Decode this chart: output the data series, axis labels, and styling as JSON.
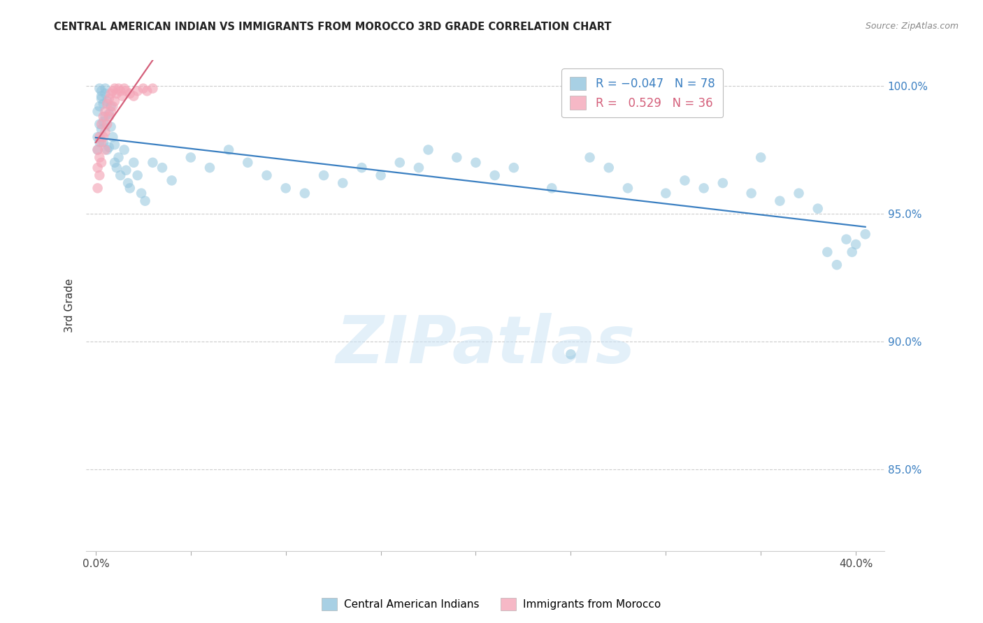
{
  "title": "CENTRAL AMERICAN INDIAN VS IMMIGRANTS FROM MOROCCO 3RD GRADE CORRELATION CHART",
  "source": "Source: ZipAtlas.com",
  "ylabel_label": "3rd Grade",
  "blue_color": "#92c5de",
  "pink_color": "#f4a6b8",
  "blue_line_color": "#3a7fc1",
  "pink_line_color": "#d45f7a",
  "watermark_text": "ZIPatlas",
  "xtick_positions": [
    0.0,
    0.05,
    0.1,
    0.15,
    0.2,
    0.25,
    0.3,
    0.35,
    0.4
  ],
  "xtick_labels": [
    "0.0%",
    "",
    "",
    "",
    "",
    "",
    "",
    "",
    "40.0%"
  ],
  "ytick_positions": [
    0.85,
    0.9,
    0.95,
    1.0
  ],
  "ytick_labels": [
    "85.0%",
    "90.0%",
    "95.0%",
    "100.0%"
  ],
  "xlim": [
    -0.005,
    0.415
  ],
  "ylim": [
    0.818,
    1.01
  ],
  "blue_x": [
    0.001,
    0.001,
    0.001,
    0.002,
    0.002,
    0.002,
    0.002,
    0.003,
    0.003,
    0.003,
    0.003,
    0.004,
    0.004,
    0.004,
    0.005,
    0.005,
    0.005,
    0.006,
    0.006,
    0.007,
    0.007,
    0.008,
    0.008,
    0.009,
    0.01,
    0.01,
    0.011,
    0.012,
    0.013,
    0.015,
    0.016,
    0.017,
    0.018,
    0.02,
    0.022,
    0.024,
    0.026,
    0.03,
    0.035,
    0.04,
    0.05,
    0.06,
    0.07,
    0.08,
    0.09,
    0.1,
    0.11,
    0.12,
    0.13,
    0.14,
    0.15,
    0.16,
    0.17,
    0.175,
    0.19,
    0.2,
    0.21,
    0.22,
    0.24,
    0.26,
    0.27,
    0.28,
    0.3,
    0.31,
    0.32,
    0.33,
    0.345,
    0.36,
    0.37,
    0.38,
    0.385,
    0.39,
    0.395,
    0.398,
    0.4,
    0.405,
    0.25,
    0.35
  ],
  "blue_y": [
    0.98,
    0.975,
    0.99,
    0.985,
    0.978,
    0.992,
    0.999,
    0.998,
    0.996,
    0.983,
    0.995,
    0.993,
    0.986,
    0.978,
    0.988,
    0.997,
    0.999,
    0.994,
    0.975,
    0.989,
    0.976,
    0.984,
    0.992,
    0.98,
    0.977,
    0.97,
    0.968,
    0.972,
    0.965,
    0.975,
    0.967,
    0.962,
    0.96,
    0.97,
    0.965,
    0.958,
    0.955,
    0.97,
    0.968,
    0.963,
    0.972,
    0.968,
    0.975,
    0.97,
    0.965,
    0.96,
    0.958,
    0.965,
    0.962,
    0.968,
    0.965,
    0.97,
    0.968,
    0.975,
    0.972,
    0.97,
    0.965,
    0.968,
    0.96,
    0.972,
    0.968,
    0.96,
    0.958,
    0.963,
    0.96,
    0.962,
    0.958,
    0.955,
    0.958,
    0.952,
    0.935,
    0.93,
    0.94,
    0.935,
    0.938,
    0.942,
    0.895,
    0.972
  ],
  "pink_x": [
    0.001,
    0.001,
    0.001,
    0.002,
    0.002,
    0.002,
    0.003,
    0.003,
    0.003,
    0.004,
    0.004,
    0.005,
    0.005,
    0.005,
    0.006,
    0.006,
    0.007,
    0.007,
    0.008,
    0.008,
    0.009,
    0.009,
    0.01,
    0.01,
    0.011,
    0.012,
    0.013,
    0.014,
    0.015,
    0.016,
    0.018,
    0.02,
    0.022,
    0.025,
    0.027,
    0.03
  ],
  "pink_y": [
    0.975,
    0.968,
    0.96,
    0.98,
    0.972,
    0.965,
    0.985,
    0.978,
    0.97,
    0.988,
    0.98,
    0.99,
    0.982,
    0.975,
    0.993,
    0.985,
    0.995,
    0.988,
    0.997,
    0.99,
    0.998,
    0.992,
    0.999,
    0.994,
    0.997,
    0.999,
    0.998,
    0.996,
    0.999,
    0.998,
    0.997,
    0.996,
    0.998,
    0.999,
    0.998,
    0.999
  ]
}
